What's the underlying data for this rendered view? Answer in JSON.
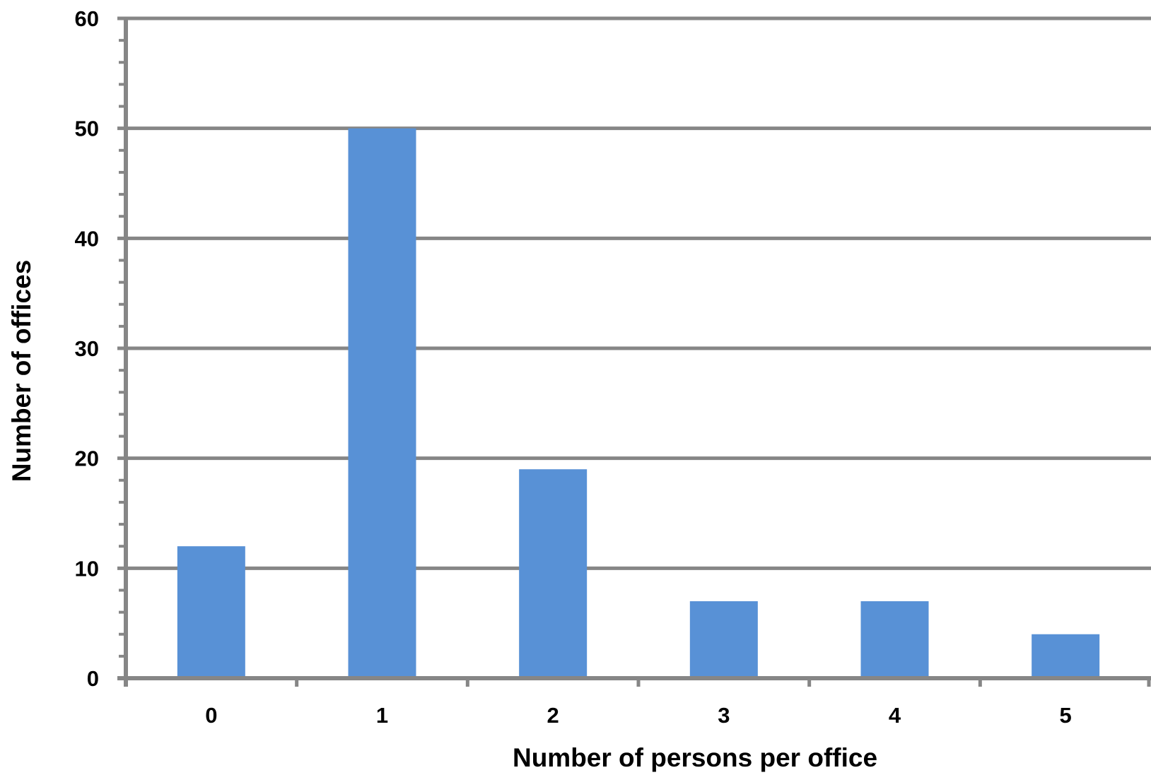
{
  "chart_data": {
    "type": "bar",
    "title": "",
    "xlabel": "Number of persons per office",
    "ylabel": "Number of offices",
    "categories": [
      "0",
      "1",
      "2",
      "3",
      "4",
      "5"
    ],
    "values": [
      12,
      50,
      19,
      7,
      7,
      4
    ],
    "ylim": [
      0,
      60
    ],
    "yticks": [
      "0",
      "10",
      "20",
      "30",
      "40",
      "50",
      "60"
    ],
    "grid": true,
    "legend": "none",
    "colors": {
      "bar": "#5891d6",
      "grid": "#868686",
      "axis": "#868686"
    }
  }
}
